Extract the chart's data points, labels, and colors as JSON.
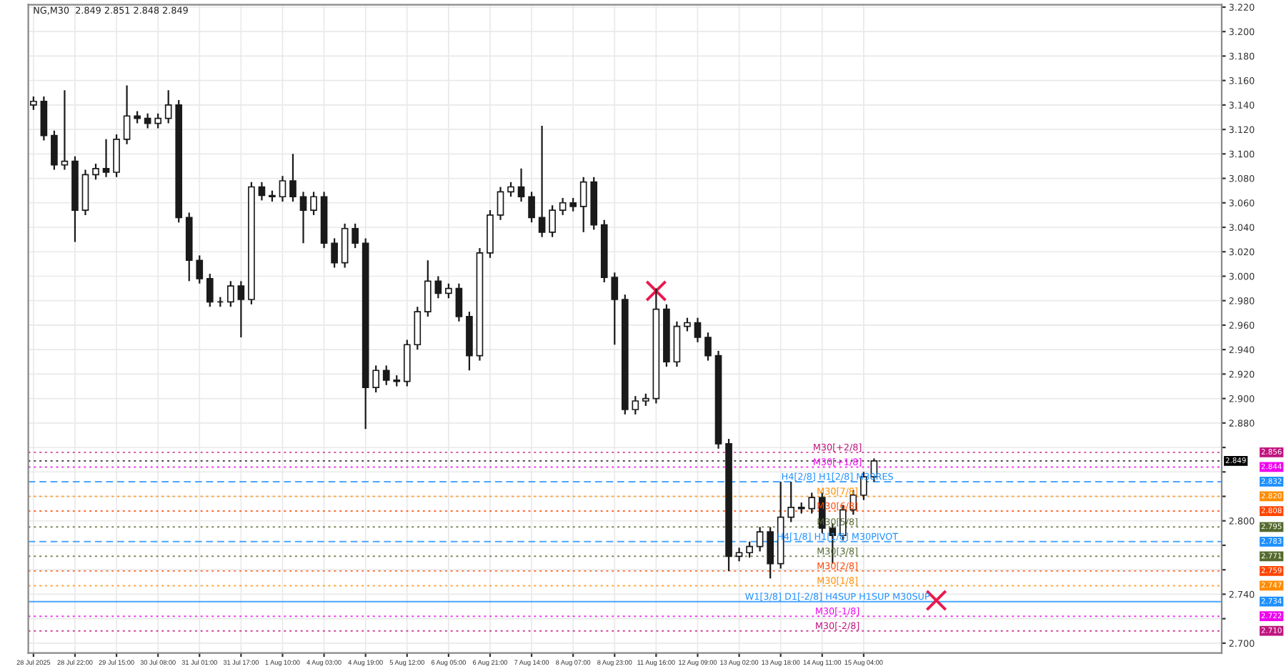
{
  "chart_data": {
    "type": "candlestick",
    "title": "NG,M30  2.849 2.851 2.848 2.849",
    "categories": [
      "28 Jul 2025",
      null,
      null,
      null,
      "28 Jul 22:00",
      null,
      null,
      null,
      "29 Jul 15:00",
      null,
      null,
      null,
      "30 Jul 08:00",
      null,
      null,
      null,
      "31 Jul 01:00",
      null,
      null,
      null,
      "31 Jul 17:00",
      null,
      null,
      null,
      "1 Aug 10:00",
      null,
      null,
      null,
      "4 Aug 03:00",
      null,
      null,
      null,
      "4 Aug 19:00",
      null,
      null,
      null,
      "5 Aug 12:00",
      null,
      null,
      null,
      "6 Aug 05:00",
      null,
      null,
      null,
      "6 Aug 21:00",
      null,
      null,
      null,
      "7 Aug 14:00",
      null,
      null,
      null,
      "8 Aug 07:00",
      null,
      null,
      null,
      "8 Aug 23:00",
      null,
      null,
      null,
      "11 Aug 16:00",
      null,
      null,
      null,
      "12 Aug 09:00",
      null,
      null,
      null,
      "13 Aug 02:00",
      null,
      null,
      null,
      "13 Aug 18:00",
      null,
      null,
      null,
      "14 Aug 11:00",
      null,
      null,
      null,
      "15 Aug 04:00",
      null,
      null,
      null,
      null,
      null,
      null,
      null,
      null,
      null,
      null,
      null,
      null,
      null,
      null,
      null,
      null,
      null,
      null,
      null,
      null,
      null,
      null,
      null,
      null,
      null,
      null,
      null,
      null,
      null,
      null,
      null,
      null,
      null,
      null
    ],
    "ohlc": [
      [
        3.14,
        3.147,
        3.136,
        3.143
      ],
      [
        3.143,
        3.147,
        3.111,
        3.115
      ],
      [
        3.115,
        3.119,
        3.087,
        3.091
      ],
      [
        3.091,
        3.152,
        3.087,
        3.094
      ],
      [
        3.094,
        3.098,
        3.028,
        3.054
      ],
      [
        3.054,
        3.087,
        3.05,
        3.083
      ],
      [
        3.083,
        3.092,
        3.079,
        3.088
      ],
      [
        3.088,
        3.112,
        3.081,
        3.085
      ],
      [
        3.085,
        3.116,
        3.081,
        3.112
      ],
      [
        3.112,
        3.156,
        3.108,
        3.131
      ],
      [
        3.131,
        3.135,
        3.125,
        3.129
      ],
      [
        3.129,
        3.133,
        3.121,
        3.125
      ],
      [
        3.125,
        3.133,
        3.121,
        3.129
      ],
      [
        3.129,
        3.152,
        3.125,
        3.14
      ],
      [
        3.14,
        3.144,
        3.044,
        3.048
      ],
      [
        3.048,
        3.052,
        2.996,
        3.013
      ],
      [
        3.013,
        3.017,
        2.994,
        2.998
      ],
      [
        2.998,
        3.002,
        2.975,
        2.979
      ],
      [
        2.979,
        2.983,
        2.975,
        2.979
      ],
      [
        2.979,
        2.996,
        2.975,
        2.992
      ],
      [
        2.992,
        2.996,
        2.95,
        2.981
      ],
      [
        2.981,
        3.077,
        2.977,
        3.073
      ],
      [
        3.073,
        3.077,
        3.062,
        3.066
      ],
      [
        3.066,
        3.07,
        3.061,
        3.065
      ],
      [
        3.065,
        3.082,
        3.061,
        3.078
      ],
      [
        3.078,
        3.1,
        3.061,
        3.065
      ],
      [
        3.065,
        3.069,
        3.027,
        3.054
      ],
      [
        3.054,
        3.069,
        3.05,
        3.065
      ],
      [
        3.065,
        3.069,
        3.023,
        3.027
      ],
      [
        3.027,
        3.031,
        3.007,
        3.011
      ],
      [
        3.011,
        3.043,
        3.007,
        3.039
      ],
      [
        3.039,
        3.043,
        3.023,
        3.027
      ],
      [
        3.027,
        3.031,
        2.875,
        2.909
      ],
      [
        2.909,
        2.927,
        2.905,
        2.923
      ],
      [
        2.923,
        2.927,
        2.911,
        2.915
      ],
      [
        2.915,
        2.919,
        2.91,
        2.914
      ],
      [
        2.914,
        2.948,
        2.91,
        2.944
      ],
      [
        2.944,
        2.975,
        2.94,
        2.971
      ],
      [
        2.971,
        3.013,
        2.967,
        2.996
      ],
      [
        2.996,
        3.0,
        2.982,
        2.986
      ],
      [
        2.986,
        2.994,
        2.982,
        2.99
      ],
      [
        2.99,
        2.994,
        2.963,
        2.967
      ],
      [
        2.967,
        2.971,
        2.923,
        2.935
      ],
      [
        2.935,
        3.023,
        2.931,
        3.019
      ],
      [
        3.019,
        3.054,
        3.015,
        3.05
      ],
      [
        3.05,
        3.073,
        3.046,
        3.069
      ],
      [
        3.069,
        3.077,
        3.065,
        3.073
      ],
      [
        3.073,
        3.088,
        3.061,
        3.065
      ],
      [
        3.065,
        3.069,
        3.044,
        3.048
      ],
      [
        3.048,
        3.123,
        3.032,
        3.036
      ],
      [
        3.036,
        3.058,
        3.032,
        3.054
      ],
      [
        3.054,
        3.064,
        3.05,
        3.06
      ],
      [
        3.06,
        3.064,
        3.053,
        3.057
      ],
      [
        3.057,
        3.081,
        3.036,
        3.077
      ],
      [
        3.077,
        3.081,
        3.038,
        3.042
      ],
      [
        3.042,
        3.046,
        2.995,
        2.999
      ],
      [
        2.999,
        3.003,
        2.944,
        2.981
      ],
      [
        2.981,
        2.985,
        2.887,
        2.891
      ],
      [
        2.891,
        2.902,
        2.887,
        2.898
      ],
      [
        2.898,
        2.904,
        2.894,
        2.9
      ],
      [
        2.9,
        2.99,
        2.896,
        2.973
      ],
      [
        2.973,
        2.977,
        2.926,
        2.93
      ],
      [
        2.93,
        2.963,
        2.926,
        2.959
      ],
      [
        2.959,
        2.966,
        2.955,
        2.962
      ],
      [
        2.962,
        2.966,
        2.946,
        2.95
      ],
      [
        2.95,
        2.954,
        2.931,
        2.935
      ],
      [
        2.935,
        2.939,
        2.859,
        2.863
      ],
      [
        2.863,
        2.867,
        2.759,
        2.771
      ],
      [
        2.771,
        2.778,
        2.767,
        2.774
      ],
      [
        2.774,
        2.783,
        2.77,
        2.779
      ],
      [
        2.779,
        2.795,
        2.775,
        2.791
      ],
      [
        2.791,
        2.795,
        2.753,
        2.765
      ],
      [
        2.765,
        2.832,
        2.761,
        2.803
      ],
      [
        2.803,
        2.832,
        2.799,
        2.811
      ],
      [
        2.811,
        2.815,
        2.806,
        2.81
      ],
      [
        2.81,
        2.823,
        2.806,
        2.819
      ],
      [
        2.819,
        2.823,
        2.79,
        2.794
      ],
      [
        2.794,
        2.798,
        2.765,
        2.788
      ],
      [
        2.788,
        2.813,
        2.784,
        2.809
      ],
      [
        2.809,
        2.825,
        2.805,
        2.821
      ],
      [
        2.821,
        2.84,
        2.817,
        2.836
      ],
      [
        2.836,
        2.851,
        2.832,
        2.849
      ],
      null,
      null,
      null,
      null,
      null,
      null,
      null,
      null,
      null,
      null,
      null,
      null,
      null,
      null,
      null,
      null,
      null,
      null,
      null,
      null,
      null,
      null,
      null,
      null,
      null,
      null,
      null,
      null,
      null,
      null,
      null,
      null,
      null
    ],
    "color": "#1a1a1a",
    "series": [
      {
        "type": "scatter",
        "marker": "cross",
        "color": "#e8194f",
        "values": [
          null,
          null,
          null,
          null,
          null,
          null,
          null,
          null,
          null,
          null,
          null,
          null,
          null,
          null,
          null,
          null,
          null,
          null,
          null,
          null,
          null,
          null,
          null,
          null,
          null,
          null,
          null,
          null,
          null,
          null,
          null,
          null,
          null,
          null,
          null,
          null,
          null,
          null,
          null,
          null,
          null,
          null,
          null,
          null,
          null,
          null,
          null,
          null,
          null,
          null,
          null,
          null,
          null,
          null,
          null,
          null,
          null,
          null,
          null,
          null,
          2.988,
          null,
          null,
          null,
          null,
          null,
          null,
          null,
          null,
          null,
          null,
          null,
          null,
          null,
          null,
          null,
          null,
          null,
          null,
          null,
          null,
          null,
          null,
          null,
          null,
          null,
          null,
          2.735,
          null,
          null,
          null,
          null,
          null,
          null,
          null,
          null,
          null,
          null,
          null,
          null,
          null,
          null,
          null,
          null,
          null,
          null,
          null,
          null,
          null,
          null,
          null,
          null,
          null,
          null,
          null
        ]
      }
    ],
    "ylim": [
      2.692,
      3.222
    ],
    "yticks": [
      {
        "value": 2.7,
        "label": "2.700"
      },
      {
        "value": 2.72,
        "label": null
      },
      {
        "value": 2.74,
        "label": "2.740"
      },
      {
        "value": 2.76,
        "label": null
      },
      {
        "value": 2.78,
        "label": null
      },
      {
        "value": 2.8,
        "label": "2.800"
      },
      {
        "value": 2.82,
        "label": null
      },
      {
        "value": 2.84,
        "label": null
      },
      {
        "value": 2.86,
        "label": null
      },
      {
        "value": 2.88,
        "label": "2.880"
      },
      {
        "value": 2.9,
        "label": "2.900"
      },
      {
        "value": 2.92,
        "label": "2.920"
      },
      {
        "value": 2.94,
        "label": "2.940"
      },
      {
        "value": 2.96,
        "label": "2.960"
      },
      {
        "value": 2.98,
        "label": "2.980"
      },
      {
        "value": 3.0,
        "label": "3.000"
      },
      {
        "value": 3.02,
        "label": "3.020"
      },
      {
        "value": 3.04,
        "label": "3.040"
      },
      {
        "value": 3.06,
        "label": "3.060"
      },
      {
        "value": 3.08,
        "label": "3.080"
      },
      {
        "value": 3.1,
        "label": "3.100"
      },
      {
        "value": 3.12,
        "label": "3.120"
      },
      {
        "value": 3.14,
        "label": "3.140"
      },
      {
        "value": 3.16,
        "label": "3.160"
      },
      {
        "value": 3.18,
        "label": "3.180"
      },
      {
        "value": 3.2,
        "label": "3.200"
      },
      {
        "value": 3.22,
        "label": "3.220"
      }
    ],
    "grid": true,
    "ref_lines": [
      {
        "axis": "y",
        "value": 2.856,
        "label": "M30[+2/8]",
        "color": "#c0157f",
        "line_style": "dotted"
      },
      {
        "axis": "y",
        "value": 2.849,
        "color": "#000000",
        "line_style": "dotted"
      },
      {
        "axis": "y",
        "value": 2.844,
        "label": "M30[+1/8]",
        "color": "#ee00ee",
        "line_style": "dotted"
      },
      {
        "axis": "y",
        "value": 2.832,
        "label": "H4[2/8] H1[2/8] M30RES",
        "color": "#1e90ff",
        "line_style": "dashed"
      },
      {
        "axis": "y",
        "value": 2.82,
        "label": "M30[7/8]",
        "color": "#ff8c00",
        "line_style": "dotted"
      },
      {
        "axis": "y",
        "value": 2.808,
        "label": "M30[6/8]",
        "color": "#ff4500",
        "line_style": "dotted"
      },
      {
        "axis": "y",
        "value": 2.795,
        "label": "M30[5/8]",
        "color": "#556b2f",
        "line_style": "dotted"
      },
      {
        "axis": "y",
        "value": 2.783,
        "label": "H4[1/8] H1[1/8] M30PIVOT",
        "color": "#1e90ff",
        "line_style": "dashed"
      },
      {
        "axis": "y",
        "value": 2.771,
        "label": "M30[3/8]",
        "color": "#556b2f",
        "line_style": "dotted"
      },
      {
        "axis": "y",
        "value": 2.759,
        "label": "M30[2/8]",
        "color": "#ff4500",
        "line_style": "dotted"
      },
      {
        "axis": "y",
        "value": 2.747,
        "label": "M30[1/8]",
        "color": "#ff8c00",
        "line_style": "dotted"
      },
      {
        "axis": "y",
        "value": 2.734,
        "label": "W1[3/8] D1[-2/8] H4SUP H1SUP M30SUP",
        "color": "#1e90ff",
        "line_style": "solid"
      },
      {
        "axis": "y",
        "value": 2.722,
        "label": "M30[-1/8]",
        "color": "#ee00ee",
        "line_style": "dotted"
      },
      {
        "axis": "y",
        "value": 2.71,
        "label": "M30[-2/8]",
        "color": "#c0157f",
        "line_style": "dotted"
      }
    ],
    "annotations": [
      "2.856",
      "2.849",
      "2.844",
      "2.832",
      "2.820",
      "2.808",
      "2.795",
      "2.783",
      "2.771",
      "2.759",
      "2.747",
      "2.734",
      "2.722",
      "2.710"
    ]
  }
}
